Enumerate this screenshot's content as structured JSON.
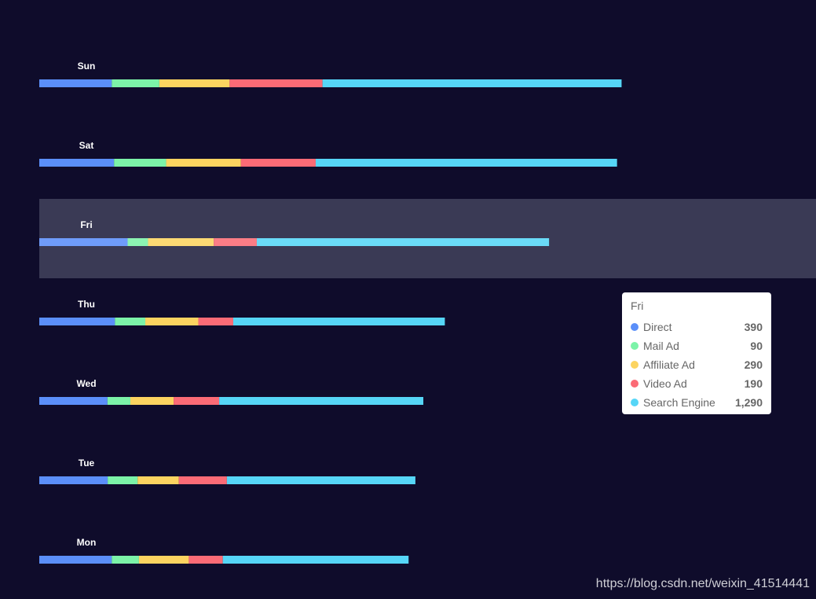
{
  "chart_data": {
    "type": "bar",
    "orientation": "horizontal",
    "stacked": true,
    "categories": [
      "Mon",
      "Tue",
      "Wed",
      "Thu",
      "Fri",
      "Sat",
      "Sun"
    ],
    "series": [
      {
        "name": "Direct",
        "color": "#5b8ff9",
        "values": [
          320,
          302,
          301,
          334,
          390,
          330,
          320
        ]
      },
      {
        "name": "Mail Ad",
        "color": "#7cf3a8",
        "values": [
          120,
          132,
          101,
          134,
          90,
          230,
          210
        ]
      },
      {
        "name": "Affiliate Ad",
        "color": "#fcd460",
        "values": [
          220,
          182,
          191,
          234,
          290,
          330,
          310
        ]
      },
      {
        "name": "Video Ad",
        "color": "#fb6b76",
        "values": [
          150,
          212,
          201,
          154,
          190,
          330,
          410
        ]
      },
      {
        "name": "Search Engine",
        "color": "#56d6f7",
        "values": [
          820,
          832,
          901,
          934,
          1290,
          1330,
          1320
        ]
      }
    ],
    "highlighted_category": "Fri",
    "grid": false,
    "axis_labels_visible": "category"
  },
  "tooltip": {
    "title": "Fri",
    "rows": [
      {
        "name": "Direct",
        "value": "390",
        "color": "#5b8ff9"
      },
      {
        "name": "Mail Ad",
        "value": "90",
        "color": "#7cf3a8"
      },
      {
        "name": "Affiliate Ad",
        "value": "290",
        "color": "#fcd460"
      },
      {
        "name": "Video Ad",
        "value": "190",
        "color": "#fb6b76"
      },
      {
        "name": "Search Engine",
        "value": "1,290",
        "color": "#56d6f7"
      }
    ]
  },
  "watermark": "https://blog.csdn.net/weixin_41514441"
}
